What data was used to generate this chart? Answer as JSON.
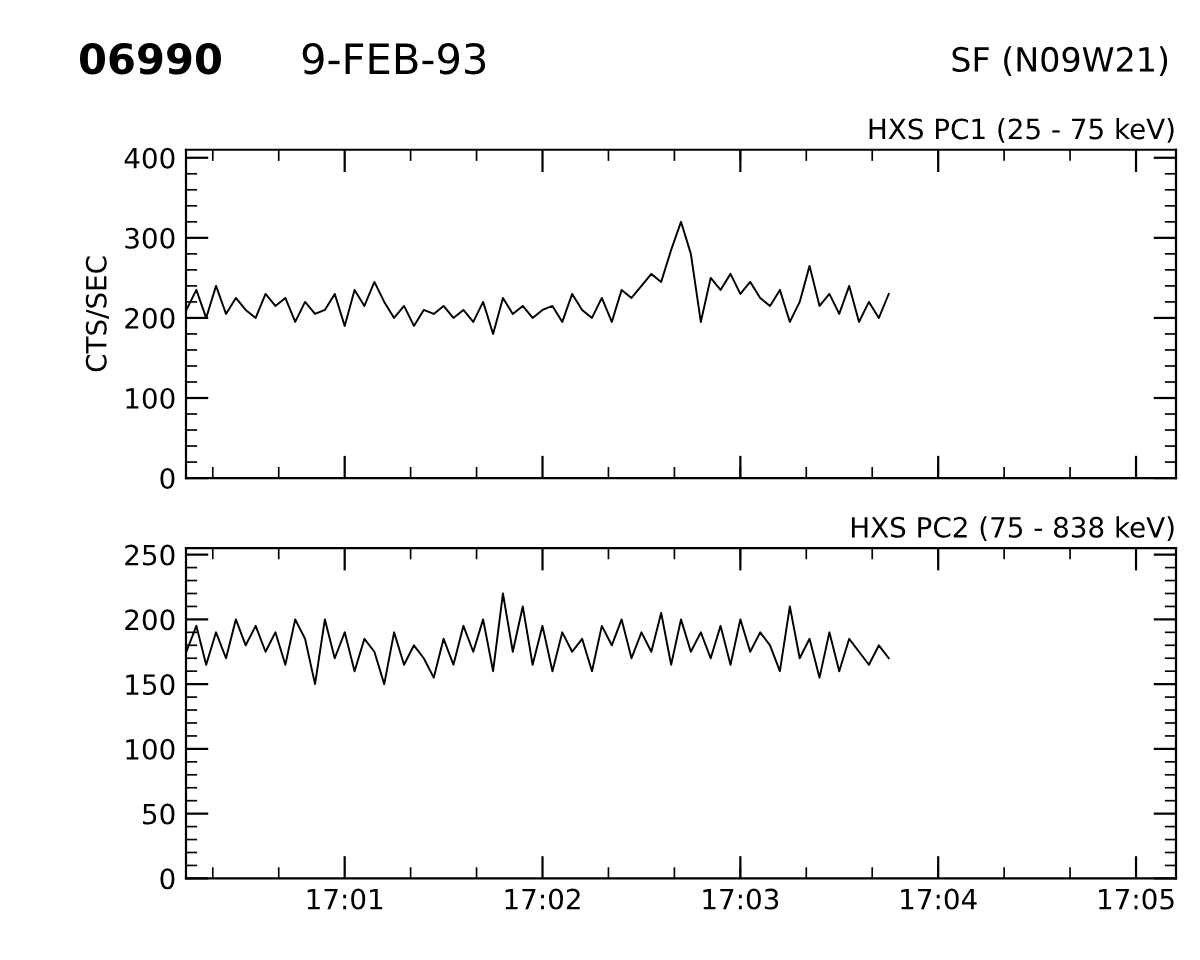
{
  "chart_data": [
    {
      "type": "line",
      "title": "HXS PC1 (25 - 75 keV)",
      "ylabel": "CTS/SEC",
      "annotations": [
        "06990",
        "9-FEB-93",
        "SF (N09W21)"
      ],
      "x": [
        17.00333,
        17.00417,
        17.005,
        17.00583,
        17.00667,
        17.0075,
        17.00833,
        17.00917,
        17.01,
        17.01083,
        17.01167,
        17.0125,
        17.01333,
        17.01417,
        17.015,
        17.01583,
        17.01667,
        17.0175,
        17.01833,
        17.01917,
        17.02,
        17.02083,
        17.02167,
        17.0225,
        17.02333,
        17.02417,
        17.025,
        17.02583,
        17.02667,
        17.0275,
        17.02833,
        17.02917,
        17.03,
        17.03083,
        17.03167,
        17.0325,
        17.03333,
        17.03417,
        17.035,
        17.03583,
        17.03667,
        17.0375,
        17.03833,
        17.03917,
        17.04,
        17.04083,
        17.04167,
        17.0425,
        17.04333,
        17.04417,
        17.045,
        17.04583,
        17.04667,
        17.0475,
        17.04833,
        17.04917,
        17.05,
        17.05083,
        17.05167,
        17.0525,
        17.05333,
        17.05417,
        17.055,
        17.05583,
        17.05667,
        17.0575,
        17.05833,
        17.05917,
        17.06,
        17.06083,
        17.06167,
        17.0625
      ],
      "series": [
        {
          "color": "#000000",
          "values": [
            210,
            235,
            200,
            240,
            205,
            225,
            210,
            200,
            230,
            215,
            225,
            195,
            220,
            205,
            210,
            230,
            190,
            235,
            215,
            245,
            220,
            200,
            215,
            190,
            210,
            205,
            215,
            200,
            210,
            195,
            220,
            180,
            225,
            205,
            215,
            200,
            210,
            215,
            195,
            230,
            210,
            200,
            225,
            195,
            235,
            225,
            240,
            255,
            245,
            285,
            320,
            280,
            195,
            250,
            235,
            255,
            230,
            245,
            225,
            215,
            235,
            195,
            220,
            265,
            215,
            230,
            205,
            240,
            195,
            220,
            200,
            230
          ]
        }
      ],
      "xlim": [
        17.0033,
        17.0867
      ],
      "xticks": [
        {
          "value": 17.016667,
          "label": null
        },
        {
          "value": 17.033333,
          "label": null
        },
        {
          "value": 17.05,
          "label": null
        },
        {
          "value": 17.066667,
          "label": null
        },
        {
          "value": 17.083333,
          "label": null
        }
      ],
      "ylim": [
        0,
        410
      ],
      "yticks": [
        0,
        100,
        200,
        300,
        400
      ],
      "tick_labels": "y"
    },
    {
      "type": "line",
      "title": "HXS PC2 (75 - 838 keV)",
      "x": [
        17.00333,
        17.00417,
        17.005,
        17.00583,
        17.00667,
        17.0075,
        17.00833,
        17.00917,
        17.01,
        17.01083,
        17.01167,
        17.0125,
        17.01333,
        17.01417,
        17.015,
        17.01583,
        17.01667,
        17.0175,
        17.01833,
        17.01917,
        17.02,
        17.02083,
        17.02167,
        17.0225,
        17.02333,
        17.02417,
        17.025,
        17.02583,
        17.02667,
        17.0275,
        17.02833,
        17.02917,
        17.03,
        17.03083,
        17.03167,
        17.0325,
        17.03333,
        17.03417,
        17.035,
        17.03583,
        17.03667,
        17.0375,
        17.03833,
        17.03917,
        17.04,
        17.04083,
        17.04167,
        17.0425,
        17.04333,
        17.04417,
        17.045,
        17.04583,
        17.04667,
        17.0475,
        17.04833,
        17.04917,
        17.05,
        17.05083,
        17.05167,
        17.0525,
        17.05333,
        17.05417,
        17.055,
        17.05583,
        17.05667,
        17.0575,
        17.05833,
        17.05917,
        17.06,
        17.06083,
        17.06167,
        17.0625
      ],
      "series": [
        {
          "color": "#000000",
          "values": [
            175,
            195,
            165,
            190,
            170,
            200,
            180,
            195,
            175,
            190,
            165,
            200,
            185,
            150,
            200,
            170,
            190,
            160,
            185,
            175,
            150,
            190,
            165,
            180,
            170,
            155,
            185,
            165,
            195,
            175,
            200,
            160,
            220,
            175,
            210,
            165,
            195,
            160,
            190,
            175,
            185,
            160,
            195,
            180,
            200,
            170,
            190,
            175,
            205,
            165,
            200,
            175,
            190,
            170,
            195,
            165,
            200,
            175,
            190,
            180,
            160,
            210,
            170,
            185,
            155,
            190,
            160,
            185,
            175,
            165,
            180,
            170
          ]
        }
      ],
      "xlim": [
        17.0033,
        17.0867
      ],
      "xticks": [
        {
          "value": 17.016667,
          "label": "17:01"
        },
        {
          "value": 17.033333,
          "label": "17:02"
        },
        {
          "value": 17.05,
          "label": "17:03"
        },
        {
          "value": 17.066667,
          "label": "17:04"
        },
        {
          "value": 17.083333,
          "label": "17:05"
        }
      ],
      "ylim": [
        0,
        255
      ],
      "yticks": [
        0,
        50,
        100,
        150,
        200,
        250
      ]
    }
  ]
}
